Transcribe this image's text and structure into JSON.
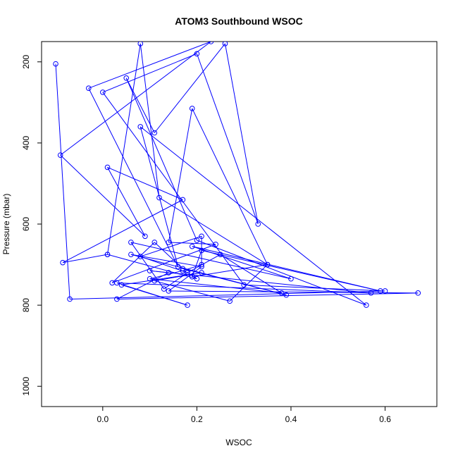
{
  "chart_data": {
    "type": "scatter",
    "title": "ATOM3 Southbound WSOC",
    "xlabel": "WSOC",
    "ylabel": "Pressure (mbar)",
    "xlim": [
      -0.13,
      0.71
    ],
    "ylim": [
      1050,
      150
    ],
    "y_reversed": true,
    "xticks": [
      0.0,
      0.2,
      0.4,
      0.6
    ],
    "xtick_labels": [
      "0.0",
      "0.2",
      "0.4",
      "0.6"
    ],
    "yticks": [
      200,
      400,
      600,
      800,
      1000
    ],
    "ytick_labels": [
      "200",
      "400",
      "600",
      "800",
      "1000"
    ],
    "grid": false,
    "legend": "none",
    "colors": {
      "series": "#0000ff",
      "axes": "#000000",
      "background": "#ffffff"
    },
    "series": [
      {
        "style": "points-and-lines",
        "x": [
          -0.1,
          -0.07,
          0.6,
          0.3,
          0.0,
          0.2,
          0.33,
          0.26,
          0.11,
          0.05,
          0.2,
          0.56,
          0.08,
          0.16,
          -0.03,
          0.23,
          -0.09,
          0.09,
          0.01,
          0.17,
          -0.085,
          0.01,
          0.08,
          0.12,
          0.35,
          0.19,
          0.14,
          0.24,
          0.02,
          0.11,
          0.17,
          0.39,
          0.06,
          0.21,
          0.14,
          0.67,
          0.03,
          0.14,
          0.1,
          0.57,
          0.03,
          0.18,
          0.04,
          0.21,
          0.11,
          0.27,
          0.35,
          0.19,
          0.21,
          0.59,
          0.19,
          0.4,
          0.06,
          0.13,
          0.18,
          0.25,
          0.38,
          0.1,
          0.17,
          0.21,
          0.21,
          0.08,
          0.18,
          0.2,
          0.01
        ],
        "y": [
          205,
          785,
          765,
          750,
          275,
          180,
          600,
          155,
          375,
          240,
          640,
          800,
          360,
          705,
          265,
          150,
          430,
          630,
          460,
          540,
          695,
          675,
          155,
          535,
          700,
          315,
          645,
          650,
          745,
          645,
          710,
          775,
          675,
          705,
          765,
          770,
          785,
          720,
          715,
          770,
          745,
          800,
          750,
          720,
          740,
          790,
          700,
          730,
          665,
          765,
          655,
          735,
          645,
          760,
          720,
          675,
          770,
          735,
          715,
          700,
          630,
          680,
          720,
          735,
          675
        ]
      }
    ]
  }
}
